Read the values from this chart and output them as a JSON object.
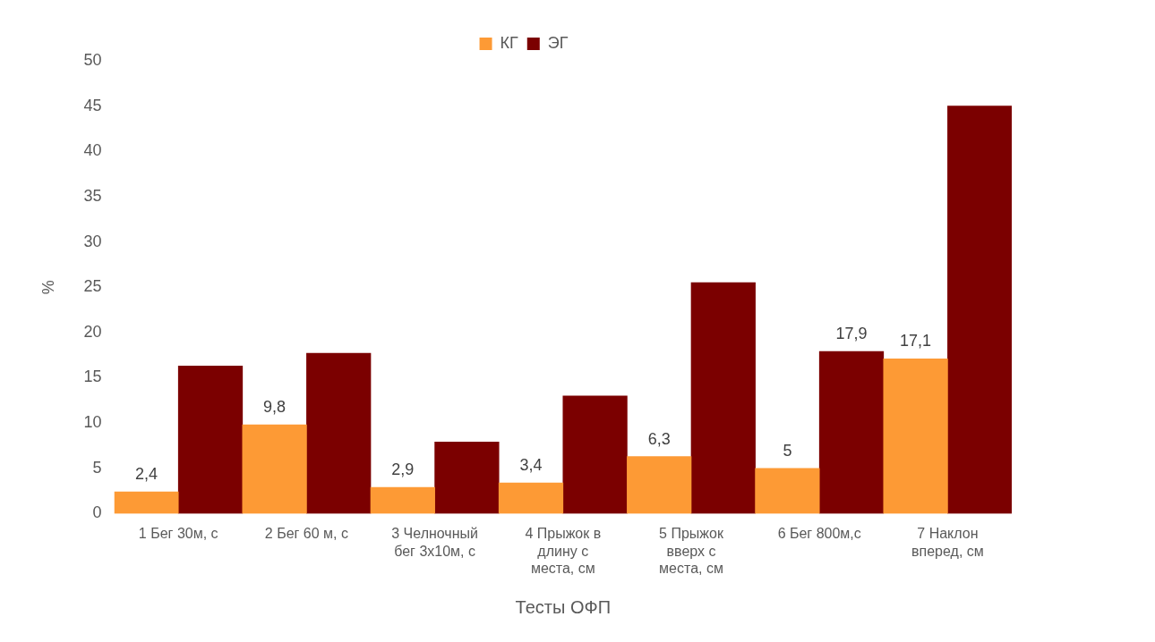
{
  "chart_data": {
    "type": "bar",
    "xlabel": "Тесты ОФП",
    "ylabel": "%",
    "categories": [
      "1 Бег 30м, с",
      "2 Бег 60 м, с",
      "3 Челночный бег 3х10м, с",
      "4 Прыжок в длину с места, см",
      "5 Прыжок вверх с места, см",
      "6 Бег 800м,с",
      "7 Наклон вперед, см"
    ],
    "series": [
      {
        "name": "КГ",
        "color": "#fd9a35",
        "values": [
          2.4,
          9.8,
          2.9,
          3.4,
          6.3,
          5,
          17.1
        ],
        "value_labels": [
          "2,4",
          "9,8",
          "2,9",
          "3,4",
          "6,3",
          "5",
          "17,1"
        ]
      },
      {
        "name": "ЭГ",
        "color": "#7b0000",
        "values": [
          16.3,
          17.7,
          7.9,
          13.0,
          25.5,
          17.9,
          45.0
        ],
        "value_labels": [
          null,
          null,
          null,
          null,
          null,
          "17,9",
          null
        ]
      }
    ],
    "ylim": [
      0,
      50
    ],
    "yticks": [
      0,
      5,
      10,
      15,
      20,
      25,
      30,
      35,
      40,
      45,
      50
    ],
    "legend": "top"
  }
}
